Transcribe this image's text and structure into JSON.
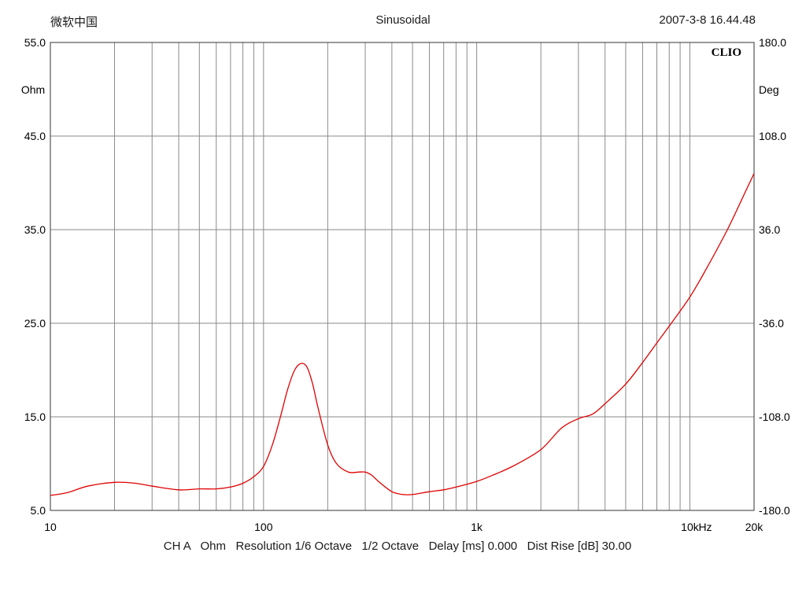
{
  "header": {
    "left": "微软中国",
    "center": "Sinusoidal",
    "right": "2007-3-8 16.44.48"
  },
  "brand": "CLIO",
  "left_unit": "Ohm",
  "right_unit": "Deg",
  "x_unit": "Hz",
  "footer": "CH A   Ohm   Resolution 1/6 Octave   1/2 Octave   Delay [ms] 0.000   Dist Rise [dB] 30.00",
  "colors": {
    "curve": "#e00000",
    "grid": "#8a8a8a",
    "frame": "#555555"
  },
  "chart_data": {
    "type": "line",
    "x_scale": "log",
    "xlim": [
      10,
      20000
    ],
    "ylim": [
      5,
      55
    ],
    "y2lim": [
      -180,
      180
    ],
    "grid": true,
    "x_tick_labels": [
      {
        "value": 10,
        "label": "10"
      },
      {
        "value": 100,
        "label": "100"
      },
      {
        "value": 1000,
        "label": "1k"
      },
      {
        "value": 10000,
        "label": "10k"
      },
      {
        "value": 20000,
        "label": "20k"
      }
    ],
    "y_tick_labels": [
      "5.0",
      "15.0",
      "25.0",
      "35.0",
      "45.0",
      "55.0"
    ],
    "y2_tick_labels": [
      "-180.0",
      "-108.0",
      "-36.0",
      "36.0",
      "108.0",
      "180.0"
    ],
    "series": [
      {
        "x": [
          10,
          12,
          15,
          20,
          25,
          30,
          40,
          50,
          60,
          70,
          80,
          90,
          100,
          110,
          120,
          130,
          140,
          150,
          160,
          170,
          180,
          200,
          220,
          250,
          280,
          300,
          320,
          350,
          400,
          450,
          500,
          600,
          700,
          800,
          1000,
          1200,
          1500,
          2000,
          2500,
          3000,
          3500,
          4000,
          5000,
          6000,
          7000,
          8000,
          10000,
          12000,
          15000,
          18000,
          20000
        ],
        "y": [
          6.6,
          6.9,
          7.6,
          8.0,
          7.9,
          7.6,
          7.2,
          7.3,
          7.3,
          7.5,
          7.9,
          8.6,
          9.7,
          12.0,
          15.0,
          18.0,
          20.0,
          20.7,
          20.3,
          18.5,
          16.0,
          12.0,
          10.0,
          9.1,
          9.1,
          9.1,
          8.8,
          8.0,
          7.0,
          6.7,
          6.7,
          7.0,
          7.2,
          7.5,
          8.1,
          8.8,
          9.8,
          11.5,
          13.8,
          14.8,
          15.3,
          16.4,
          18.5,
          20.8,
          22.9,
          24.7,
          27.8,
          30.9,
          35.0,
          38.8,
          41.0
        ]
      }
    ]
  }
}
